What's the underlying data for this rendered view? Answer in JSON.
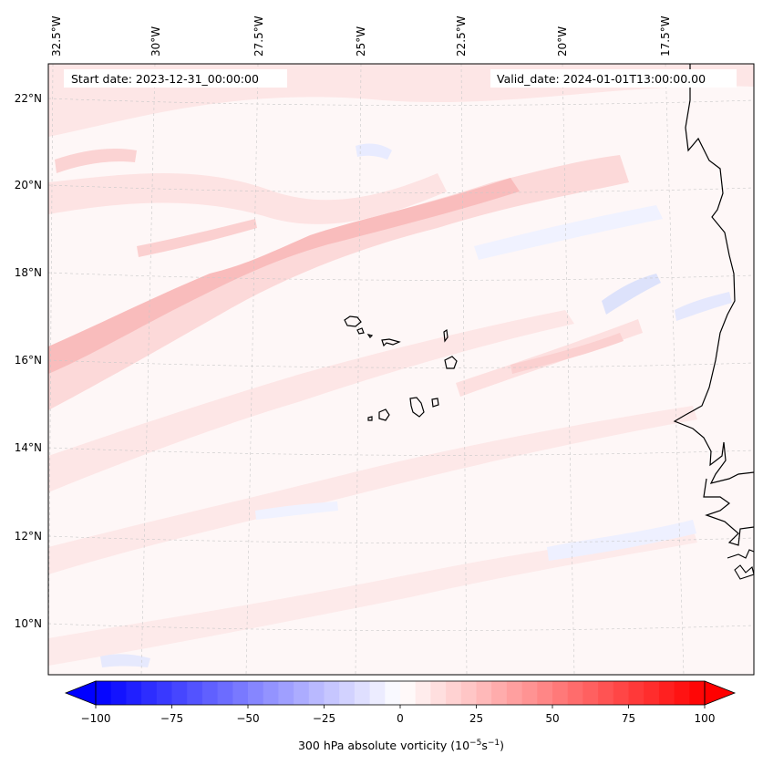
{
  "map": {
    "start_date": "Start date: 2023-12-31_00:00:00",
    "valid_date": "Valid_date: 2024-01-01T13:00:00.00",
    "lon_labels": [
      "32.5°W",
      "30°W",
      "27.5°W",
      "25°W",
      "22.5°W",
      "20°W",
      "17.5°W"
    ],
    "lat_labels": [
      "22°N",
      "20°N",
      "18°N",
      "16°N",
      "14°N",
      "12°N",
      "10°N"
    ],
    "field_colors": {
      "background": "#fef7f7",
      "light_pink": "#fde3e3",
      "medium_pink": "#fbcdcd",
      "strong_pink": "#f9b4b4",
      "light_blue": "#eef0ff",
      "medium_blue": "#dde2fb",
      "coastline": "#000000",
      "gridline": "#c8c8c8"
    }
  },
  "colorbar": {
    "label_prefix": "300 hPa absolute vorticity (10",
    "label_exp1": "−5",
    "label_mid": "s",
    "label_exp2": "−1",
    "label_suffix": ")",
    "ticks": [
      {
        "value": -100,
        "label": "−100"
      },
      {
        "value": -75,
        "label": "−75"
      },
      {
        "value": -50,
        "label": "−50"
      },
      {
        "value": -25,
        "label": "−25"
      },
      {
        "value": 0,
        "label": "0"
      },
      {
        "value": 25,
        "label": "25"
      },
      {
        "value": 50,
        "label": "50"
      },
      {
        "value": 75,
        "label": "75"
      },
      {
        "value": 100,
        "label": "100"
      }
    ],
    "vmin": -100,
    "vmax": 100,
    "levels": 40,
    "negative_color": "#0000ff",
    "positive_color": "#ff0000",
    "center_color": "#ffffff",
    "extend": "both"
  }
}
